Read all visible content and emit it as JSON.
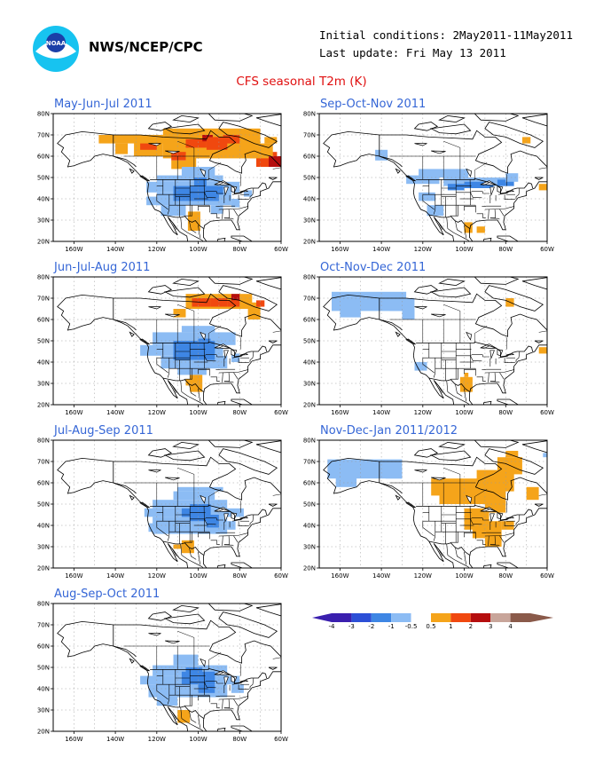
{
  "header": {
    "org": "NWS/NCEP/CPC",
    "logo_text": "NOAA",
    "initial_conditions": "Initial conditions: 2May2011-11May2011",
    "last_update": "Last update: Fri May 13 2011",
    "main_title": "CFS seasonal T2m (K)"
  },
  "axes": {
    "lat_labels": [
      "80N",
      "70N",
      "60N",
      "50N",
      "40N",
      "30N",
      "20N"
    ],
    "lon_labels": [
      "160W",
      "140W",
      "120W",
      "100W",
      "80W",
      "60W"
    ]
  },
  "colors": {
    "neg4": "#3a1fae",
    "neg3": "#2c4fd6",
    "neg2": "#3e86e4",
    "neg1": "#8cbcf4",
    "neutral": "#ffffff",
    "pos1": "#f5a41a",
    "pos2": "#f0480f",
    "pos3": "#b50e0e",
    "pos4": "#c8a59a",
    "pos5": "#8a5a4a",
    "text_blue": "#3566d6",
    "text_red": "#e01010"
  },
  "legend": {
    "labels": [
      "-4",
      "-3",
      "-2",
      "-1",
      "-0.5",
      "0.5",
      "1",
      "2",
      "3",
      "4"
    ]
  },
  "panels": [
    {
      "title": "May-Jun-Jul 2011",
      "col": 0,
      "row": 0
    },
    {
      "title": "Sep-Oct-Nov 2011",
      "col": 1,
      "row": 0
    },
    {
      "title": "Jun-Jul-Aug 2011",
      "col": 0,
      "row": 1
    },
    {
      "title": "Oct-Nov-Dec 2011",
      "col": 1,
      "row": 1
    },
    {
      "title": "Jul-Aug-Sep 2011",
      "col": 0,
      "row": 2
    },
    {
      "title": "Nov-Dec-Jan 2011/2012",
      "col": 1,
      "row": 2
    },
    {
      "title": "Aug-Sep-Oct 2011",
      "col": 0,
      "row": 3
    }
  ]
}
